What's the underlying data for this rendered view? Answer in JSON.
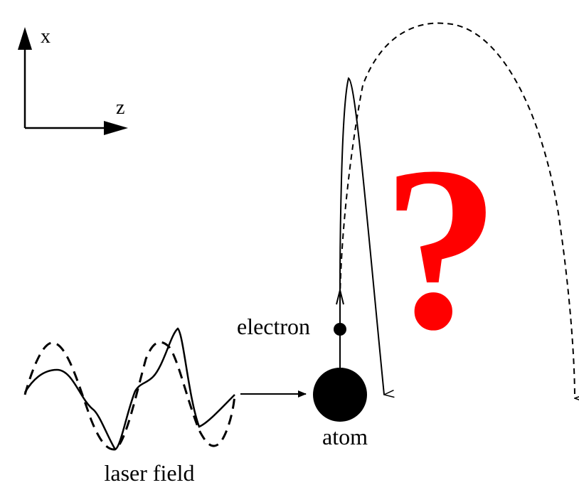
{
  "axes": {
    "vertical_label": "x",
    "horizontal_label": "z"
  },
  "labels": {
    "electron": "electron",
    "atom": "atom",
    "laser_field": "laser field",
    "question_mark": "?"
  },
  "colors": {
    "ink": "#000000",
    "question": "#ff0000",
    "background": "#ffffff"
  }
}
